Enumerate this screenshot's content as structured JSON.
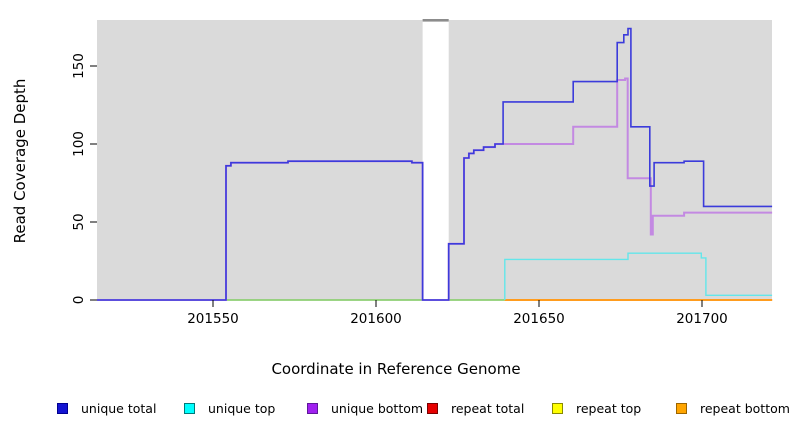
{
  "figure": {
    "x_axis_title": "Coordinate in Reference Genome",
    "y_axis_title": "Read Coverage Depth",
    "panel_bg": "#DADADA",
    "outer_bg": "#FFFFFF"
  },
  "axes": {
    "x_ticks": [
      201550,
      201600,
      201650,
      201700
    ],
    "y_ticks": [
      0,
      50,
      100,
      150
    ],
    "x_range": [
      201514.4,
      201721.5
    ],
    "y_range": [
      0,
      179
    ]
  },
  "chart_data": {
    "type": "line",
    "title": "",
    "xlabel": "Coordinate in Reference Genome",
    "ylabel": "Read Coverage Depth",
    "grid": false,
    "legend_position": "bottom",
    "gap_region": {
      "x_start": 201614.3,
      "x_end": 201622.3,
      "fill": "#FFFFFF",
      "top_marker_color": "#8C8C8C"
    },
    "series": [
      {
        "name": "repeat total",
        "color": "#E03030",
        "width": 1.3,
        "points": [
          [
            201514.4,
            0
          ],
          [
            201721.5,
            0
          ]
        ]
      },
      {
        "name": "repeat top",
        "color": "#F2F200",
        "width": 1.3,
        "points": [
          [
            201514.4,
            0
          ],
          [
            201721.5,
            0
          ]
        ]
      },
      {
        "name": "baseline green segment",
        "color": "#7FD57F",
        "width": 1.5,
        "points": [
          [
            201554,
            0
          ],
          [
            201639.5,
            0
          ]
        ]
      },
      {
        "name": "repeat bottom",
        "color": "#FF9C1E",
        "width": 2.0,
        "points": [
          [
            201639.5,
            0
          ],
          [
            201721.5,
            0
          ]
        ]
      },
      {
        "name": "unique top",
        "color": "#63E6EA",
        "width": 1.4,
        "points": [
          [
            201639.5,
            0
          ],
          [
            201639.5,
            26
          ],
          [
            201677.3,
            26
          ],
          [
            201677.3,
            30
          ],
          [
            201699.8,
            30
          ],
          [
            201699.8,
            27
          ],
          [
            201701.2,
            27
          ],
          [
            201701.2,
            3
          ],
          [
            201721.5,
            3
          ]
        ]
      },
      {
        "name": "unique bottom",
        "color": "#C389E2",
        "width": 2.0,
        "points": [
          [
            201514.4,
            0
          ],
          [
            201554,
            0
          ],
          [
            201554,
            86
          ],
          [
            201555.5,
            86
          ],
          [
            201555.5,
            88
          ],
          [
            201573,
            88
          ],
          [
            201573,
            89
          ],
          [
            201611,
            89
          ],
          [
            201611,
            88
          ],
          [
            201614.3,
            88
          ],
          [
            201614.3,
            0
          ],
          [
            201622.3,
            0
          ],
          [
            201622.3,
            36
          ],
          [
            201627,
            36
          ],
          [
            201627,
            91
          ],
          [
            201628.5,
            91
          ],
          [
            201628.5,
            94
          ],
          [
            201630,
            94
          ],
          [
            201630,
            96
          ],
          [
            201633,
            96
          ],
          [
            201633,
            98
          ],
          [
            201636.5,
            98
          ],
          [
            201636.5,
            100
          ],
          [
            201660.5,
            100
          ],
          [
            201660.5,
            111
          ],
          [
            201674,
            111
          ],
          [
            201674,
            141
          ],
          [
            201676.4,
            141
          ],
          [
            201676.4,
            142
          ],
          [
            201677.2,
            142
          ],
          [
            201677.2,
            78
          ],
          [
            201684.3,
            78
          ],
          [
            201684.3,
            42
          ],
          [
            201684.9,
            42
          ],
          [
            201684.9,
            54
          ],
          [
            201694.5,
            54
          ],
          [
            201694.5,
            56
          ],
          [
            201721.5,
            56
          ]
        ]
      },
      {
        "name": "unique total",
        "color": "#3B3BDB",
        "width": 1.6,
        "points": [
          [
            201514.4,
            0
          ],
          [
            201554,
            0
          ],
          [
            201554,
            86
          ],
          [
            201555.5,
            86
          ],
          [
            201555.5,
            88
          ],
          [
            201573,
            88
          ],
          [
            201573,
            89
          ],
          [
            201611,
            89
          ],
          [
            201611,
            88
          ],
          [
            201614.3,
            88
          ],
          [
            201614.3,
            0
          ],
          [
            201622.3,
            0
          ],
          [
            201622.3,
            36
          ],
          [
            201627,
            36
          ],
          [
            201627,
            91
          ],
          [
            201628.5,
            91
          ],
          [
            201628.5,
            94
          ],
          [
            201630,
            94
          ],
          [
            201630,
            96
          ],
          [
            201633,
            96
          ],
          [
            201633,
            98
          ],
          [
            201636.5,
            98
          ],
          [
            201636.5,
            100
          ],
          [
            201639,
            100
          ],
          [
            201639,
            127
          ],
          [
            201660.5,
            127
          ],
          [
            201660.5,
            140
          ],
          [
            201674,
            140
          ],
          [
            201674,
            165
          ],
          [
            201676,
            165
          ],
          [
            201676,
            170
          ],
          [
            201677.3,
            170
          ],
          [
            201677.3,
            174
          ],
          [
            201678.2,
            174
          ],
          [
            201678.2,
            111
          ],
          [
            201684,
            111
          ],
          [
            201684,
            73
          ],
          [
            201685.3,
            73
          ],
          [
            201685.3,
            88
          ],
          [
            201694.5,
            88
          ],
          [
            201694.5,
            89
          ],
          [
            201700.5,
            89
          ],
          [
            201700.5,
            60
          ],
          [
            201721.5,
            60
          ]
        ]
      }
    ]
  },
  "legend": {
    "items": [
      {
        "label": "unique total",
        "fill": "#1414D2",
        "border": "#000090"
      },
      {
        "label": "unique top",
        "fill": "#00FFFF",
        "border": "#007A7A"
      },
      {
        "label": "unique bottom",
        "fill": "#A020F0",
        "border": "#5E189A"
      },
      {
        "label": "repeat total",
        "fill": "#E60000",
        "border": "#7A0000"
      },
      {
        "label": "repeat top",
        "fill": "#FFFF00",
        "border": "#8A8A00"
      },
      {
        "label": "repeat bottom",
        "fill": "#FFA500",
        "border": "#9C6500"
      }
    ]
  }
}
